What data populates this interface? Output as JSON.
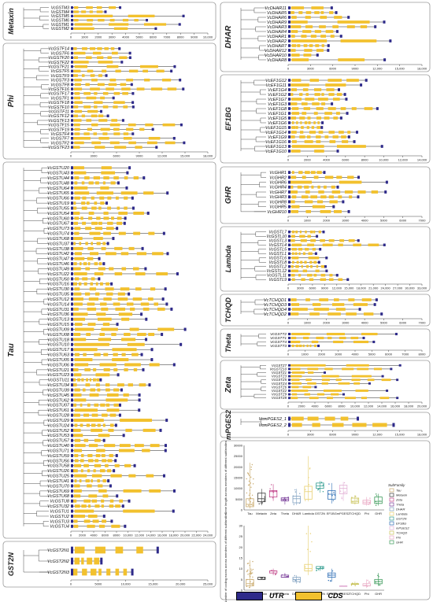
{
  "colors": {
    "utr": "#2e2a8a",
    "cds": "#f2c12e",
    "frame": "#9a9a9a",
    "line": "#222222",
    "axis": "#444444"
  },
  "legend": {
    "utr": "UTR",
    "cds": "CDS"
  },
  "panels": [
    {
      "title": "Metaxin",
      "ticks": [
        "0",
        "1000",
        "2000",
        "3000",
        "4000",
        "5000",
        "6000",
        "7000",
        "8000",
        "9000",
        "10,000"
      ],
      "genes": [
        "VcGSTM3",
        "VcGSTM4",
        "VcGSTM5",
        "VcGSTM6",
        "VcGSTM1",
        "VcGSTM2"
      ]
    },
    {
      "title": "Phi",
      "ticks": [
        "0",
        "3000",
        "6000",
        "9000",
        "12,000",
        "15,000",
        "18,000"
      ],
      "genes": [
        "VcGSTF14",
        "VcGSTF6",
        "VcGSTF20",
        "VcGSTF22",
        "VcGSTF21",
        "VcGSTF5",
        "VcGSTF9",
        "VcGSTF3",
        "VcGSTF8",
        "VcGSTF16",
        "VcGSTF17",
        "VcGSTF1",
        "VcGSTF18",
        "VcGSTF10",
        "VcGSTF11",
        "VcGSTF12",
        "VcGSTF13",
        "VcGSTF15",
        "VcGSTF19",
        "VcGSTF4",
        "VcGSTF7",
        "VcGSTF2",
        "VcGSTF23"
      ]
    },
    {
      "title": "Tau",
      "ticks": [
        "0",
        "2000",
        "4000",
        "6000",
        "8000",
        "10,000",
        "12,000",
        "14,000",
        "16,000",
        "18,000",
        "20,000",
        "22,000",
        "24,000"
      ],
      "genes": [
        "VcGSTU20",
        "VcGSTU43",
        "VcGSTU44",
        "VcGSTU48",
        "VcGSTU64",
        "VcGSTU65",
        "VcGSTU66",
        "VcGSTU19",
        "VcGSTU55",
        "VcGSTU54",
        "VcGSTU60",
        "VcGSTU67",
        "VcGSTU73",
        "VcGSTU74",
        "VcGSTU68",
        "VcGSTU37",
        "VcGSTU38",
        "VcGSTU42",
        "VcGSTU47",
        "VcGSTU46",
        "VcGSTU49",
        "VcGSTU22",
        "VcGSTU50",
        "VcGSTU16",
        "VcGSTU30",
        "VcGSTU35",
        "VcGSTU12",
        "VcGSTU14",
        "VcGSTU31",
        "VcGSTU36",
        "VcGSTU13",
        "VcGSTU15",
        "VcGSTU09",
        "VcGSTU08",
        "VcGSTU18",
        "VcGSTU10",
        "VcGSTU17",
        "VcGSTU63",
        "VcGSTU05",
        "VcGSTU06",
        "VcGSTU21",
        "VcGSTU23",
        "VcGSTU11",
        "VcGSTU34",
        "VcGSTU39",
        "VcGSTU45",
        "VcGSTU62",
        "VcGSTU07",
        "VcGSTU61",
        "VcGSTU28",
        "VcGSTU29",
        "VcGSTU24",
        "VcGSTU52",
        "VcGSTU53",
        "VcGSTU57",
        "VcGSTU40",
        "VcGSTU71",
        "VcGSTU59",
        "VcGSTU56",
        "VcGSTU58",
        "VcGSTU26",
        "VcGSTU25",
        "VcGSTU41",
        "VcGSTU70",
        "VcGSTU69",
        "VcGSTU68",
        "VcGSTU8",
        "VcGSTU32",
        "VcGSTU1",
        "VcGSTU2",
        "VcGSTU3",
        "VcGSTU4"
      ]
    },
    {
      "title": "GST2N",
      "ticks": [
        "0",
        "5000",
        "10,000",
        "15,000",
        "20,000",
        "25,000"
      ],
      "genes": [
        "VcGST2N1",
        "VcGST2N2",
        "VcGST2N3"
      ]
    },
    {
      "title": "DHAR",
      "ticks": [
        "0",
        "3000",
        "6000",
        "9000",
        "12,000",
        "15,000",
        "18,000"
      ],
      "genes": [
        "VcDHAR11",
        "VcDHAR5",
        "VcDHAR6",
        "VcDHAR9",
        "VcDHAR3",
        "VcDHAR4",
        "VcDHAR1",
        "VcDHAR2",
        "VcDHAR7",
        "VcDHAR12",
        "VcDHAR10",
        "VcDHAR8"
      ]
    },
    {
      "title": "EF1BG",
      "ticks": [
        "0",
        "2000",
        "4000",
        "6000",
        "8000",
        "10,000",
        "12,000",
        "14,000"
      ],
      "genes": [
        "VcEF1G12",
        "VcEF1G11",
        "VcEF1G4",
        "VcEF1G2",
        "VcEF1G7",
        "VcEF1G3",
        "VcEF1G8",
        "VcEF1G1",
        "VcEF1G5",
        "VcEF1G6",
        "VcEF1G15",
        "VcEF1G14",
        "VcEF1G9",
        "VcEF1G16",
        "VcEF1G13",
        "VcEF1G10"
      ]
    },
    {
      "title": "GHR",
      "ticks": [
        "0",
        "1000",
        "2000",
        "3000",
        "4000",
        "5000",
        "6000",
        "7000"
      ],
      "genes": [
        "VcGHR1",
        "VcGHR2",
        "VcGHR6",
        "VcGHR4",
        "VcGHR7",
        "VcGHR3",
        "VcGHR8",
        "VcGHR5",
        "VcGHR10"
      ]
    },
    {
      "title": "Lambda",
      "ticks": [
        "0",
        "3000",
        "6000",
        "9000",
        "12,000",
        "15,000",
        "18,000",
        "21,000",
        "24,000",
        "27,000",
        "30,000",
        "33,000"
      ],
      "genes": [
        "VcGSTL7",
        "VcGSTL10",
        "VcGSTL3",
        "VcGSTL4",
        "VcGSTL5",
        "VcGSTL1",
        "VcGSTL6",
        "VcGSTL8",
        "VcGSTL2",
        "VcGSTL12",
        "VcGSTL11",
        "VcGSTL9"
      ]
    },
    {
      "title": "TCHQD",
      "ticks": [
        "0",
        "1000",
        "2000",
        "3000",
        "4000",
        "5000",
        "6000",
        "7000"
      ],
      "genes": [
        "VcTCHQD1",
        "VcTCHQD3",
        "VcTCHQD4",
        "VcTCHQD2"
      ]
    },
    {
      "title": "Theta",
      "ticks": [
        "0",
        "1000",
        "2000",
        "3000",
        "4000",
        "5000",
        "6000",
        "7000",
        "8000"
      ],
      "genes": [
        "VcGSTT2",
        "VcGSTT1",
        "VcGSTT4",
        "VcGSTT3"
      ]
    },
    {
      "title": "Zeta",
      "ticks": [
        "0",
        "2000",
        "4000",
        "6000",
        "8000",
        "10,000",
        "12,000",
        "14,000",
        "16,000",
        "18,000",
        "20,000"
      ],
      "genes": [
        "VcGSTZ7",
        "VcGSTZ10",
        "VcGSTZ1",
        "VcGSTZ3",
        "VcGSTZ5",
        "VcGSTZ4",
        "VcGSTZ6",
        "VcGSTZ2",
        "VcGSTZ9",
        "VcGSTZ8"
      ]
    },
    {
      "title": "mPGES2",
      "ticks": [
        "0",
        "3000",
        "6000",
        "9000",
        "12,000",
        "15,000",
        "18,000"
      ],
      "genes": [
        "VcmPGES2_1",
        "VcmPGES2_2"
      ]
    }
  ],
  "boxplots": {
    "categories": [
      "Tau",
      "Metaxin",
      "Zeta",
      "Theta",
      "DHAR",
      "Lambda",
      "GST2N",
      "EF1BG",
      "mPGES2",
      "TCHQD",
      "Phi",
      "GHR"
    ],
    "legend_title": "SubFamily",
    "top": {
      "ylabel": "Gene length across members of different subfamilies",
      "yticks": [
        "0",
        "5000",
        "10000",
        "15000",
        "20000",
        "25000",
        "30000"
      ],
      "ymax": 30000,
      "stats": [
        [
          700,
          1500,
          2600,
          5200,
          22000
        ],
        [
          2200,
          3800,
          5200,
          7800,
          9800
        ],
        [
          4200,
          6000,
          8500,
          9000,
          12000
        ],
        [
          2500,
          4200,
          5000,
          5600,
          6100
        ],
        [
          2300,
          3300,
          5200,
          6400,
          9800
        ],
        [
          4000,
          5000,
          8500,
          11000,
          25000
        ],
        [
          8000,
          10000,
          11200,
          12500,
          13500
        ],
        [
          3000,
          5000,
          7300,
          9000,
          12500
        ],
        [
          4200,
          7500,
          10000,
          11500,
          13000
        ],
        [
          2500,
          3200,
          4000,
          5500,
          6700
        ],
        [
          2000,
          2800,
          3600,
          4500,
          6000
        ],
        [
          2000,
          3000,
          4000,
          6000,
          7500
        ]
      ]
    },
    "bottom": {
      "ylabel": "Number of coding exons across members of different subfamilies",
      "yticks": [
        "0",
        "5",
        "10",
        "15",
        "20",
        "25",
        "30"
      ],
      "ymax": 30,
      "stats": [
        [
          1,
          2,
          3,
          5,
          14
        ],
        [
          5,
          5,
          5,
          6,
          6
        ],
        [
          7,
          8,
          9,
          9,
          10
        ],
        [
          6,
          6,
          6,
          7,
          8
        ],
        [
          3,
          4,
          5,
          6,
          7
        ],
        [
          7,
          9,
          10,
          12,
          30
        ],
        [
          9,
          10,
          10,
          11,
          11
        ],
        [
          4,
          6,
          7,
          8,
          10
        ],
        [
          2,
          2,
          2,
          2,
          2
        ],
        [
          2,
          3,
          3,
          3,
          4
        ],
        [
          1,
          2,
          2,
          3,
          5
        ],
        [
          2,
          3,
          4,
          5,
          8
        ]
      ]
    }
  }
}
